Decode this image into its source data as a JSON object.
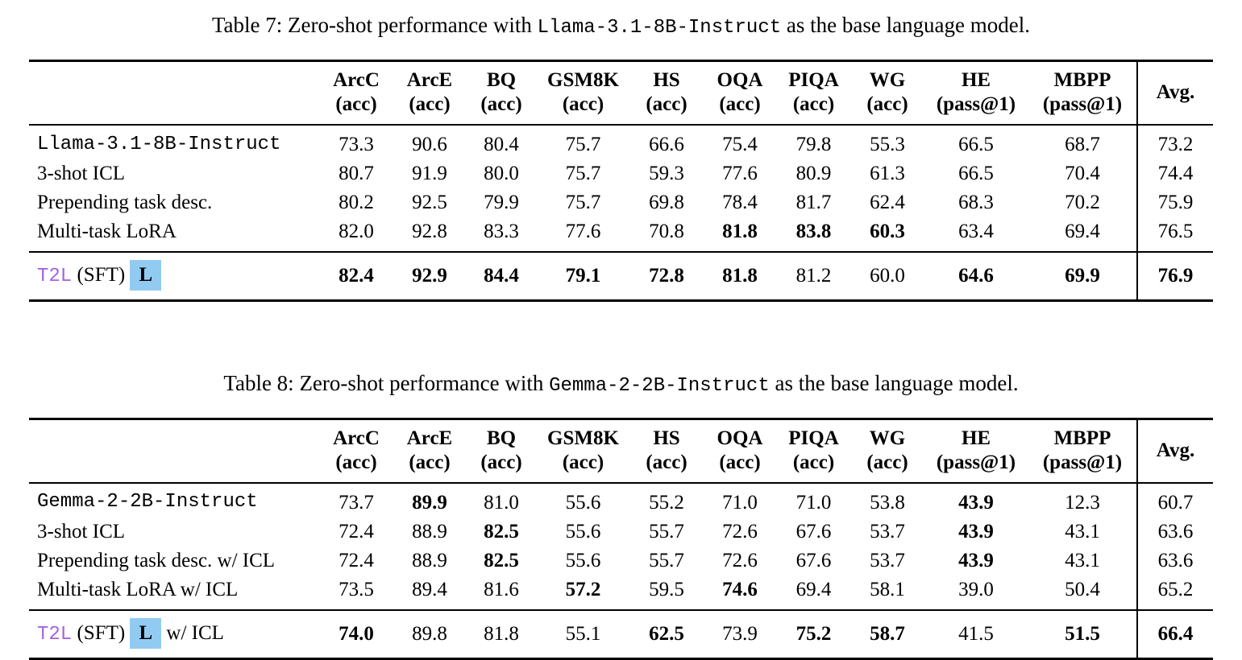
{
  "colors": {
    "t2l_purple": "#A366DF",
    "highlight_blue": "#92CBF2",
    "text": "#000000",
    "background": "#ffffff"
  },
  "tables": [
    {
      "caption": {
        "prefix": "Table 7: Zero-shot performance with ",
        "code": "Llama-3.1-8B-Instruct",
        "suffix": " as the base language model."
      },
      "columns": [
        {
          "name": "ArcC",
          "metric": "(acc)"
        },
        {
          "name": "ArcE",
          "metric": "(acc)"
        },
        {
          "name": "BQ",
          "metric": "(acc)"
        },
        {
          "name": "GSM8K",
          "metric": "(acc)"
        },
        {
          "name": "HS",
          "metric": "(acc)"
        },
        {
          "name": "OQA",
          "metric": "(acc)"
        },
        {
          "name": "PIQA",
          "metric": "(acc)"
        },
        {
          "name": "WG",
          "metric": "(acc)"
        },
        {
          "name": "HE",
          "metric": "(pass@1)"
        },
        {
          "name": "MBPP",
          "metric": "(pass@1)"
        }
      ],
      "avg_label": "Avg.",
      "rows": [
        {
          "label": "Llama-3.1-8B-Instruct",
          "mono": true,
          "values": [
            "73.3",
            "90.6",
            "80.4",
            "75.7",
            "66.6",
            "75.4",
            "79.8",
            "55.3",
            "66.5",
            "68.7"
          ],
          "bold": [
            false,
            false,
            false,
            false,
            false,
            false,
            false,
            false,
            false,
            false
          ],
          "avg": "73.2",
          "avg_bold": false
        },
        {
          "label": "3-shot ICL",
          "mono": false,
          "values": [
            "80.7",
            "91.9",
            "80.0",
            "75.7",
            "59.3",
            "77.6",
            "80.9",
            "61.3",
            "66.5",
            "70.4"
          ],
          "bold": [
            false,
            false,
            false,
            false,
            false,
            false,
            false,
            false,
            false,
            false
          ],
          "avg": "74.4",
          "avg_bold": false
        },
        {
          "label": "Prepending task desc.",
          "mono": false,
          "values": [
            "80.2",
            "92.5",
            "79.9",
            "75.7",
            "69.8",
            "78.4",
            "81.7",
            "62.4",
            "68.3",
            "70.2"
          ],
          "bold": [
            false,
            false,
            false,
            false,
            false,
            false,
            false,
            false,
            false,
            false
          ],
          "avg": "75.9",
          "avg_bold": false
        },
        {
          "label": "Multi-task LoRA",
          "mono": false,
          "values": [
            "82.0",
            "92.8",
            "83.3",
            "77.6",
            "70.8",
            "81.8",
            "83.8",
            "60.3",
            "63.4",
            "69.4"
          ],
          "bold": [
            false,
            false,
            false,
            false,
            false,
            true,
            true,
            true,
            false,
            false
          ],
          "avg": "76.5",
          "avg_bold": false
        }
      ],
      "t2l_row": {
        "t2l": "T2L",
        "mid": "(SFT)",
        "box": "L",
        "suffix": "",
        "values": [
          "82.4",
          "92.9",
          "84.4",
          "79.1",
          "72.8",
          "81.8",
          "81.2",
          "60.0",
          "64.6",
          "69.9"
        ],
        "bold": [
          true,
          true,
          true,
          true,
          true,
          true,
          false,
          false,
          true,
          true
        ],
        "avg": "76.9",
        "avg_bold": true
      }
    },
    {
      "caption": {
        "prefix": "Table 8: Zero-shot performance with ",
        "code": "Gemma-2-2B-Instruct",
        "suffix": " as the base language model."
      },
      "columns": [
        {
          "name": "ArcC",
          "metric": "(acc)"
        },
        {
          "name": "ArcE",
          "metric": "(acc)"
        },
        {
          "name": "BQ",
          "metric": "(acc)"
        },
        {
          "name": "GSM8K",
          "metric": "(acc)"
        },
        {
          "name": "HS",
          "metric": "(acc)"
        },
        {
          "name": "OQA",
          "metric": "(acc)"
        },
        {
          "name": "PIQA",
          "metric": "(acc)"
        },
        {
          "name": "WG",
          "metric": "(acc)"
        },
        {
          "name": "HE",
          "metric": "(pass@1)"
        },
        {
          "name": "MBPP",
          "metric": "(pass@1)"
        }
      ],
      "avg_label": "Avg.",
      "rows": [
        {
          "label": "Gemma-2-2B-Instruct",
          "mono": true,
          "values": [
            "73.7",
            "89.9",
            "81.0",
            "55.6",
            "55.2",
            "71.0",
            "71.0",
            "53.8",
            "43.9",
            "12.3"
          ],
          "bold": [
            false,
            true,
            false,
            false,
            false,
            false,
            false,
            false,
            true,
            false
          ],
          "avg": "60.7",
          "avg_bold": false
        },
        {
          "label": "3-shot ICL",
          "mono": false,
          "values": [
            "72.4",
            "88.9",
            "82.5",
            "55.6",
            "55.7",
            "72.6",
            "67.6",
            "53.7",
            "43.9",
            "43.1"
          ],
          "bold": [
            false,
            false,
            true,
            false,
            false,
            false,
            false,
            false,
            true,
            false
          ],
          "avg": "63.6",
          "avg_bold": false
        },
        {
          "label": "Prepending task desc. w/ ICL",
          "mono": false,
          "values": [
            "72.4",
            "88.9",
            "82.5",
            "55.6",
            "55.7",
            "72.6",
            "67.6",
            "53.7",
            "43.9",
            "43.1"
          ],
          "bold": [
            false,
            false,
            true,
            false,
            false,
            false,
            false,
            false,
            true,
            false
          ],
          "avg": "63.6",
          "avg_bold": false
        },
        {
          "label": "Multi-task LoRA w/ ICL",
          "mono": false,
          "values": [
            "73.5",
            "89.4",
            "81.6",
            "57.2",
            "59.5",
            "74.6",
            "69.4",
            "58.1",
            "39.0",
            "50.4"
          ],
          "bold": [
            false,
            false,
            false,
            true,
            false,
            true,
            false,
            false,
            false,
            false
          ],
          "avg": "65.2",
          "avg_bold": false
        }
      ],
      "t2l_row": {
        "t2l": "T2L",
        "mid": "(SFT)",
        "box": "L",
        "suffix": "w/ ICL",
        "values": [
          "74.0",
          "89.8",
          "81.8",
          "55.1",
          "62.5",
          "73.9",
          "75.2",
          "58.7",
          "41.5",
          "51.5"
        ],
        "bold": [
          true,
          false,
          false,
          false,
          true,
          false,
          true,
          true,
          false,
          true
        ],
        "avg": "66.4",
        "avg_bold": true
      }
    }
  ]
}
